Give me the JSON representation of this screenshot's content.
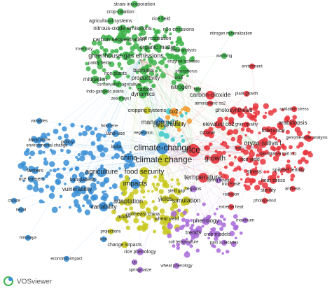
{
  "logo": "VOSviewer",
  "nodes": [
    {
      "label": "straw incorporation",
      "color": "#3db34a"
    },
    {
      "label": "crop-rotation",
      "color": "#3db34a"
    },
    {
      "label": "rice field",
      "color": "#3db34a"
    },
    {
      "label": "agricultural systems",
      "color": "#3db34a"
    },
    {
      "label": "nitrous-oxide emissions",
      "color": "#3db34a"
    },
    {
      "label": "n2o emissions",
      "color": "#3db34a"
    },
    {
      "label": "soil respiration",
      "color": "#3db34a"
    },
    {
      "label": "nitrogen mineralization",
      "color": "#3db34a"
    },
    {
      "label": "carbon sequestration",
      "color": "#3db34a"
    },
    {
      "label": "organic matter",
      "color": "#3db34a"
    },
    {
      "label": "inventory",
      "color": "#3db34a"
    },
    {
      "label": "meta-analysis",
      "color": "#3db34a"
    },
    {
      "label": "greenhouse-gas emissions",
      "color": "#3db34a"
    },
    {
      "label": "warming",
      "color": "#3db34a"
    },
    {
      "label": "paddy fields",
      "color": "#3db34a"
    },
    {
      "label": "enzyme activities",
      "color": "#3db34a"
    },
    {
      "label": "rice plants",
      "color": "#3db34a"
    },
    {
      "label": "biomass",
      "color": "#3db34a"
    },
    {
      "label": "phosphorus",
      "color": "#3db34a"
    },
    {
      "label": "mitigation",
      "color": "#3db34a"
    },
    {
      "label": "productivity",
      "color": "#3db34a"
    },
    {
      "label": "soil",
      "color": "#3db34a"
    },
    {
      "label": "conservation agriculture",
      "color": "#3db34a"
    },
    {
      "label": "nitrogen",
      "color": "#3db34a"
    },
    {
      "label": "indo-gangetic plains",
      "color": "#3db34a"
    },
    {
      "label": "carbon",
      "color": "#3db34a"
    },
    {
      "label": "zea mays l",
      "color": "#3db34a"
    },
    {
      "label": "dynamics",
      "color": "#3db34a"
    },
    {
      "label": "field",
      "color": "#3db34a"
    },
    {
      "label": "enrichment",
      "color": "#e8343c"
    },
    {
      "label": "carbon-dioxide",
      "color": "#e8343c"
    },
    {
      "label": "plant growth",
      "color": "#e8343c"
    },
    {
      "label": "atmospheric co2",
      "color": "#e8343c"
    },
    {
      "label": "photosynthesis",
      "color": "#e8343c"
    },
    {
      "label": "oxidative stress",
      "color": "#e8343c"
    },
    {
      "label": "elevated co2",
      "color": "#e8343c"
    },
    {
      "label": "grain quality",
      "color": "#e8343c"
    },
    {
      "label": "ozone",
      "color": "#e8343c"
    },
    {
      "label": "tolerance",
      "color": "#e8343c"
    },
    {
      "label": "arabidopsis",
      "color": "#e8343c"
    },
    {
      "label": "genome-wide analysis",
      "color": "#e8343c"
    },
    {
      "label": "oryza-sativa l",
      "color": "#e8343c"
    },
    {
      "label": "leaf",
      "color": "#e8343c"
    },
    {
      "label": "rice",
      "color": "#e8343c"
    },
    {
      "label": "growth",
      "color": "#e8343c"
    },
    {
      "label": "rice yield",
      "color": "#e8343c"
    },
    {
      "label": "quantitative trait loci",
      "color": "#e8343c"
    },
    {
      "label": "stress",
      "color": "#e8343c"
    },
    {
      "label": "heat stress",
      "color": "#e8343c"
    },
    {
      "label": "spikelet fertility",
      "color": "#e8343c"
    },
    {
      "label": "sterility",
      "color": "#e8343c"
    },
    {
      "label": "anthesis",
      "color": "#e8343c"
    },
    {
      "label": "temperature",
      "color": "#e8343c"
    },
    {
      "label": "increase",
      "color": "#e8343c"
    },
    {
      "label": "photoperiod",
      "color": "#e8343c"
    },
    {
      "label": "radiation",
      "color": "#e8343c"
    },
    {
      "label": "extreme heat",
      "color": "#e8343c"
    },
    {
      "label": "maximum",
      "color": "#a86ad8"
    },
    {
      "label": "management",
      "color": "#3a8fd6"
    },
    {
      "label": "variables",
      "color": "#3a8fd6"
    },
    {
      "label": "holocene",
      "color": "#3a8fd6"
    },
    {
      "label": "land-use",
      "color": "#3a8fd6"
    },
    {
      "label": "vegetation",
      "color": "#3a8fd6"
    },
    {
      "label": "aquaculture",
      "color": "#3a8fd6"
    },
    {
      "label": "environmental change",
      "color": "#3a8fd6"
    },
    {
      "label": "policy",
      "color": "#3a8fd6"
    },
    {
      "label": "india",
      "color": "#3a8fd6"
    },
    {
      "label": "china",
      "color": "#3a8fd6"
    },
    {
      "label": "climate-change",
      "color": "#3a8fd6"
    },
    {
      "label": "agriculture",
      "color": "#3a8fd6"
    },
    {
      "label": "farmers",
      "color": "#3a8fd6"
    },
    {
      "label": "rice farmers",
      "color": "#3a8fd6"
    },
    {
      "label": "bangladesh",
      "color": "#3a8fd6"
    },
    {
      "label": "vulnerability",
      "color": "#3a8fd6"
    },
    {
      "label": "impacts",
      "color": "#3a8fd6"
    },
    {
      "label": "variability",
      "color": "#3a8fd6"
    },
    {
      "label": "choice",
      "color": "#3a8fd6"
    },
    {
      "label": "nepal",
      "color": "#3a8fd6"
    },
    {
      "label": "himalaya",
      "color": "#3a8fd6"
    },
    {
      "label": "iran",
      "color": "#3a8fd6"
    },
    {
      "label": "economic-impact",
      "color": "#3a8fd6"
    },
    {
      "label": "climate change",
      "color": "#c8c81e"
    },
    {
      "label": "climate",
      "color": "#c8c81e"
    },
    {
      "label": "quality",
      "color": "#c8c81e"
    },
    {
      "label": "co2",
      "color": "#f29a2e"
    },
    {
      "label": "cropping systems",
      "color": "#c8c81e"
    },
    {
      "label": "food security",
      "color": "#c8c81e"
    },
    {
      "label": "yield gap",
      "color": "#c8c81e"
    },
    {
      "label": "adaptation",
      "color": "#c8c81e"
    },
    {
      "label": "yields",
      "color": "#c8c81e"
    },
    {
      "label": "simulation",
      "color": "#c8c81e"
    },
    {
      "label": "northeast china",
      "color": "#c8c81e"
    },
    {
      "label": "wheat yield",
      "color": "#c8c81e"
    },
    {
      "label": "model",
      "color": "#c8c81e"
    },
    {
      "label": "projections",
      "color": "#c8c81e"
    },
    {
      "label": "change impacts",
      "color": "#c8c81e"
    },
    {
      "label": "regions",
      "color": "#a86ad8"
    },
    {
      "label": "spring wheat",
      "color": "#a86ad8"
    },
    {
      "label": "phenology",
      "color": "#a86ad8"
    },
    {
      "label": "trends",
      "color": "#a86ad8"
    },
    {
      "label": "crop models",
      "color": "#a86ad8"
    },
    {
      "label": "past 3 decades",
      "color": "#a86ad8"
    },
    {
      "label": "soil temperature",
      "color": "#a86ad8"
    },
    {
      "label": "rice phenology",
      "color": "#a86ad8"
    },
    {
      "label": "wheat phenology",
      "color": "#a86ad8"
    },
    {
      "label": "springmaize",
      "color": "#a86ad8"
    },
    {
      "label": "us",
      "color": "#a86ad8"
    }
  ]
}
